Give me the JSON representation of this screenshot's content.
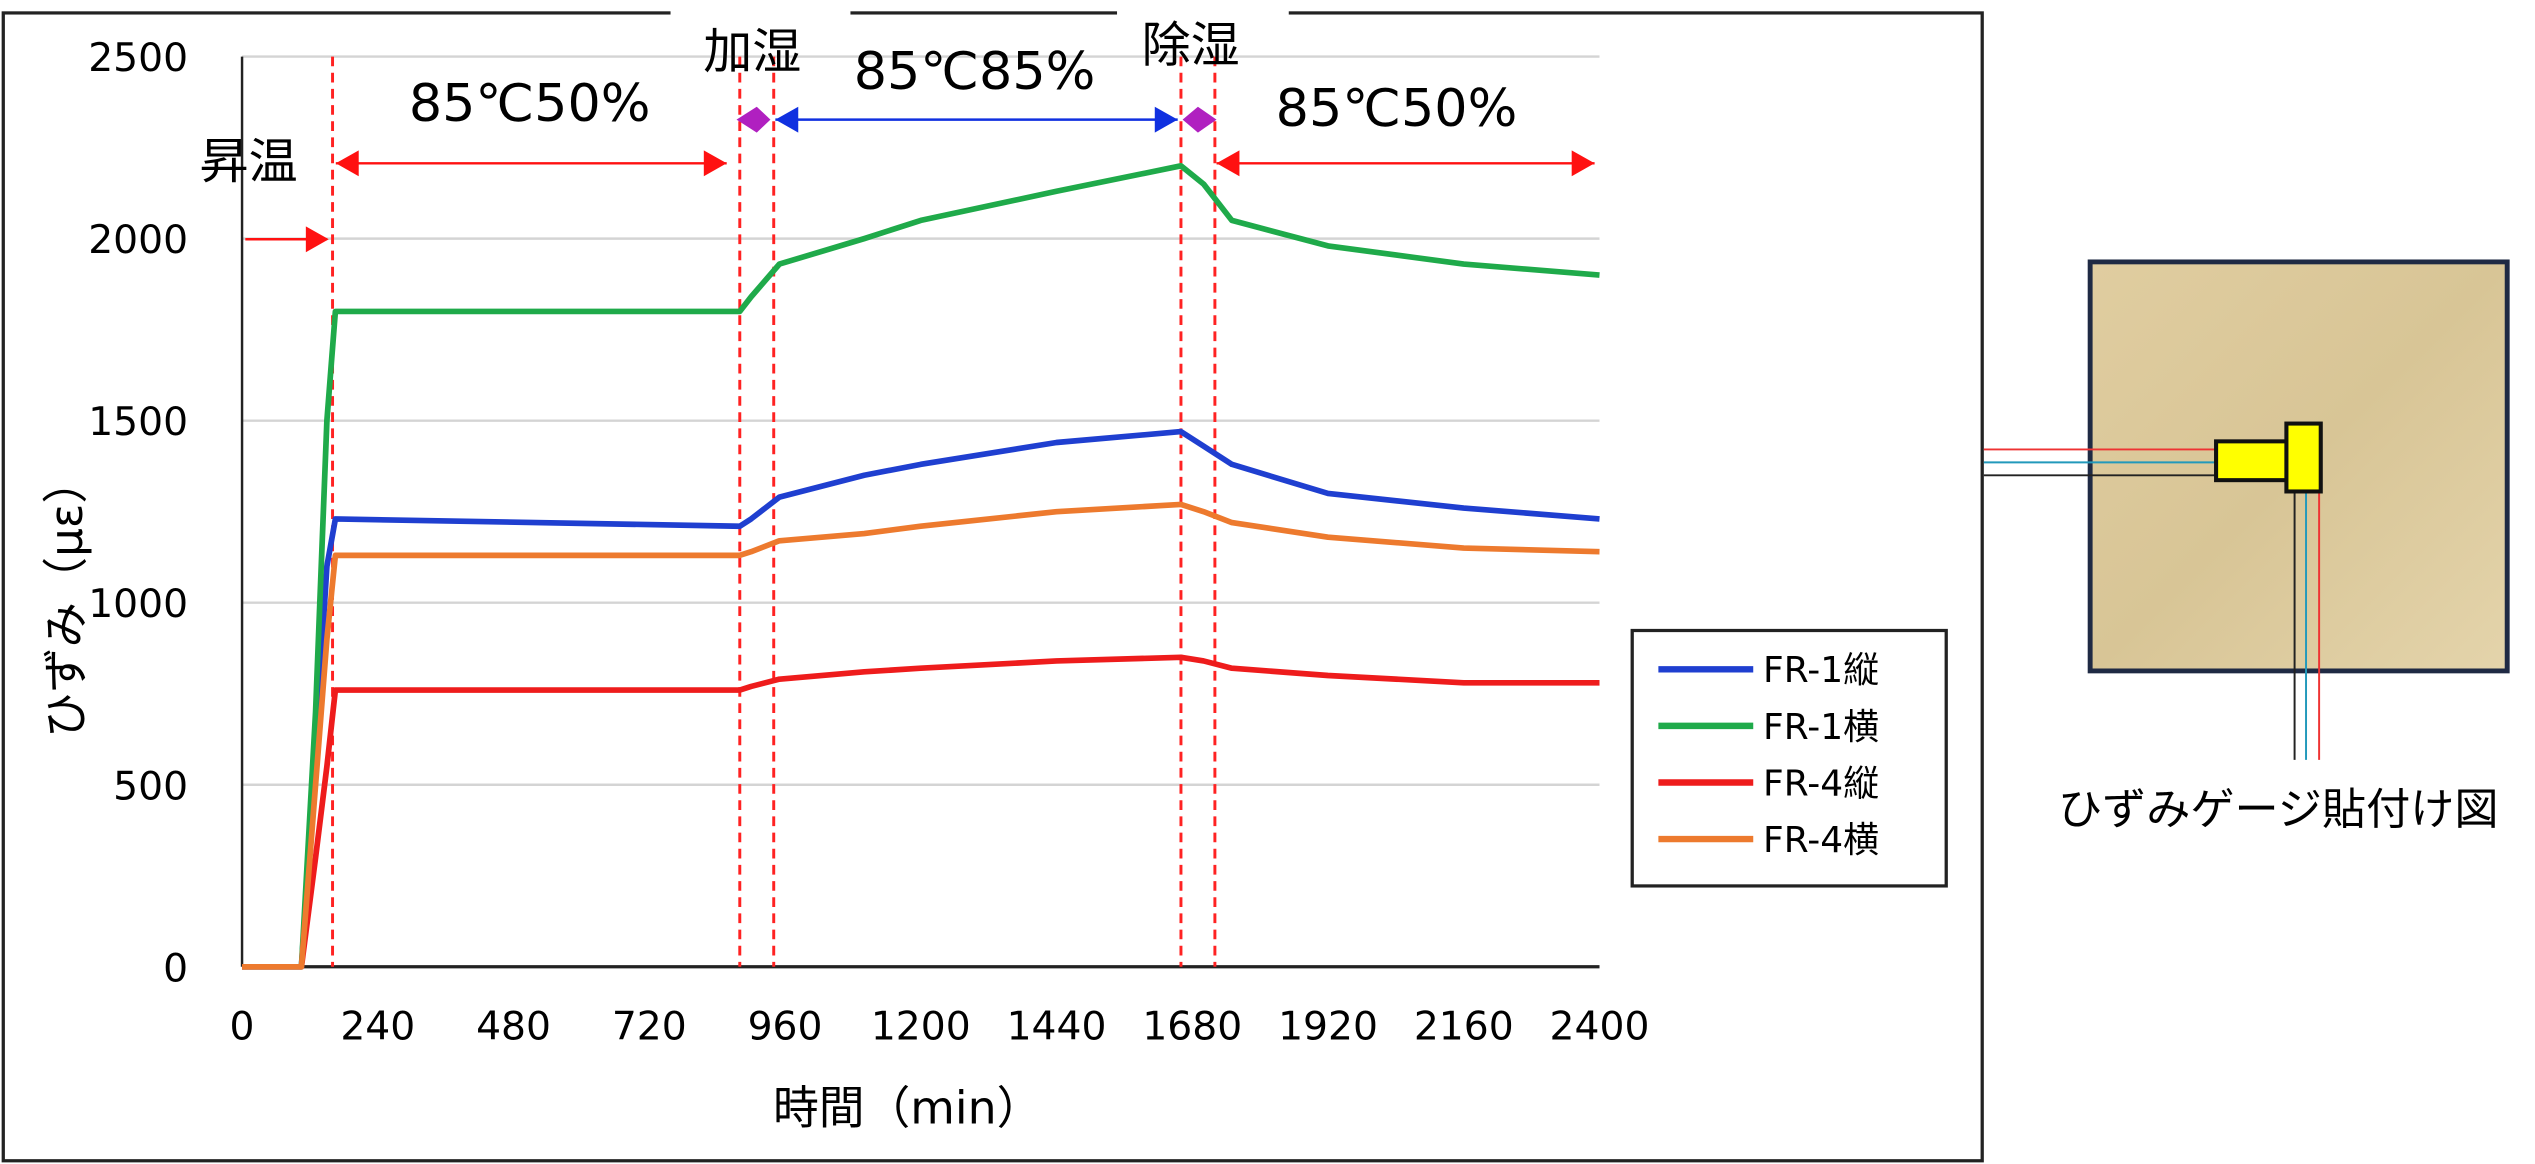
{
  "chart_data": {
    "type": "line",
    "xlabel": "時間（min）",
    "ylabel": "ひずみ（με）",
    "xlim": [
      0,
      2400
    ],
    "ylim": [
      0,
      2500
    ],
    "xticks": [
      0,
      240,
      480,
      720,
      960,
      1200,
      1440,
      1680,
      1920,
      2160,
      2400
    ],
    "yticks": [
      0,
      500,
      1000,
      1500,
      2000,
      2500
    ],
    "grid": true,
    "legend": "right",
    "series": [
      {
        "name": "FR-1縦",
        "color": "#1f3fd0",
        "x": [
          0,
          105,
          130,
          150,
          165,
          880,
          900,
          950,
          1100,
          1200,
          1440,
          1660,
          1700,
          1750,
          1920,
          2160,
          2400
        ],
        "y": [
          0,
          0,
          600,
          1100,
          1230,
          1210,
          1230,
          1290,
          1350,
          1380,
          1440,
          1470,
          1430,
          1380,
          1300,
          1260,
          1230
        ]
      },
      {
        "name": "FR-1横",
        "color": "#1faa4a",
        "x": [
          0,
          105,
          130,
          150,
          165,
          880,
          900,
          950,
          1100,
          1200,
          1440,
          1660,
          1700,
          1750,
          1920,
          2160,
          2400
        ],
        "y": [
          0,
          0,
          700,
          1500,
          1800,
          1800,
          1840,
          1930,
          2000,
          2050,
          2130,
          2200,
          2150,
          2050,
          1980,
          1930,
          1900
        ]
      },
      {
        "name": "FR-4縦",
        "color": "#ee1c1c",
        "x": [
          0,
          105,
          130,
          150,
          165,
          880,
          900,
          950,
          1100,
          1200,
          1440,
          1660,
          1700,
          1750,
          1920,
          2160,
          2400
        ],
        "y": [
          0,
          0,
          300,
          550,
          760,
          760,
          770,
          790,
          810,
          820,
          840,
          850,
          840,
          820,
          800,
          780,
          780
        ]
      },
      {
        "name": "FR-4横",
        "color": "#ed7a2e",
        "x": [
          0,
          105,
          130,
          150,
          165,
          880,
          900,
          950,
          1100,
          1200,
          1440,
          1660,
          1700,
          1750,
          1920,
          2160,
          2400
        ],
        "y": [
          0,
          0,
          500,
          900,
          1130,
          1130,
          1140,
          1170,
          1190,
          1210,
          1250,
          1270,
          1250,
          1220,
          1180,
          1150,
          1140
        ]
      }
    ],
    "phase_lines": [
      160,
      880,
      940,
      1660,
      1720
    ],
    "annotations": {
      "heating": "昇温",
      "phase1": "85℃50%",
      "humidify": "加湿",
      "phase2": "85℃85%",
      "dehumidify": "除湿",
      "phase3": "85℃50%"
    }
  },
  "figure": {
    "caption": "ひずみゲージ貼付け図"
  }
}
